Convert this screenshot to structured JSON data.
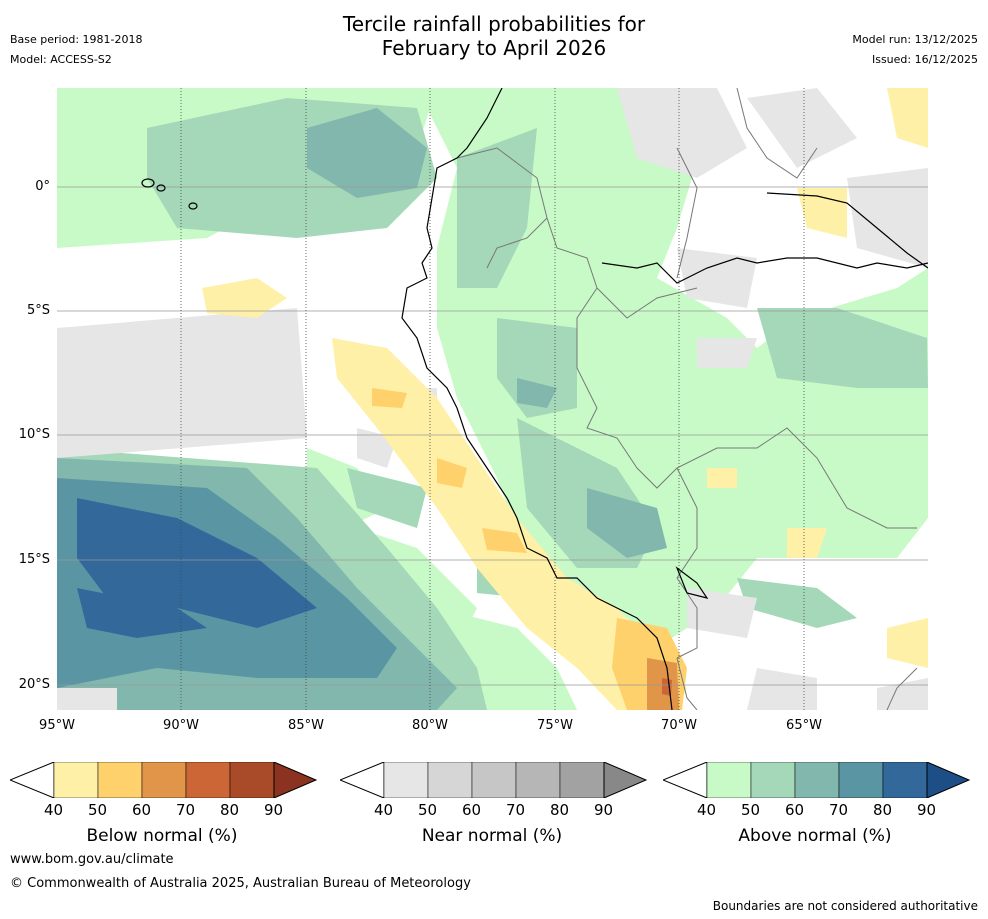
{
  "header": {
    "title_line1": "Tercile rainfall probabilities for",
    "title_line2": "February to April 2026",
    "base_period": "Base period: 1981-2018",
    "model": "Model: ACCESS-S2",
    "model_run": "Model run: 13/12/2025",
    "issued": "Issued: 16/12/2025"
  },
  "map": {
    "lat_labels": [
      "0°",
      "5°S",
      "10°S",
      "15°S",
      "20°S"
    ],
    "lon_labels": [
      "95°W",
      "90°W",
      "85°W",
      "80°W",
      "75°W",
      "70°W",
      "65°W"
    ]
  },
  "legends": [
    {
      "id": "below",
      "title": "Below normal (%)",
      "ticks": [
        "40",
        "50",
        "60",
        "70",
        "80",
        "90"
      ],
      "colors": [
        "#fff0a8",
        "#fed16d",
        "#e09549",
        "#cc6636",
        "#a94a28",
        "#8b3320"
      ]
    },
    {
      "id": "near",
      "title": "Near normal (%)",
      "ticks": [
        "40",
        "50",
        "60",
        "70",
        "80",
        "90"
      ],
      "colors": [
        "#e6e6e6",
        "#d6d6d6",
        "#c6c6c6",
        "#b6b6b6",
        "#a2a2a2",
        "#888888"
      ]
    },
    {
      "id": "above",
      "title": "Above normal (%)",
      "ticks": [
        "40",
        "50",
        "60",
        "70",
        "80",
        "90"
      ],
      "colors": [
        "#c8fac8",
        "#a4d8b8",
        "#82b7ae",
        "#5a95a3",
        "#33689b",
        "#1d4f86"
      ]
    }
  ],
  "footer": {
    "website": "www.bom.gov.au/climate",
    "copyright": "© Commonwealth of Australia 2025, Australian Bureau of Meteorology",
    "disclaimer": "Boundaries are not considered authoritative"
  }
}
